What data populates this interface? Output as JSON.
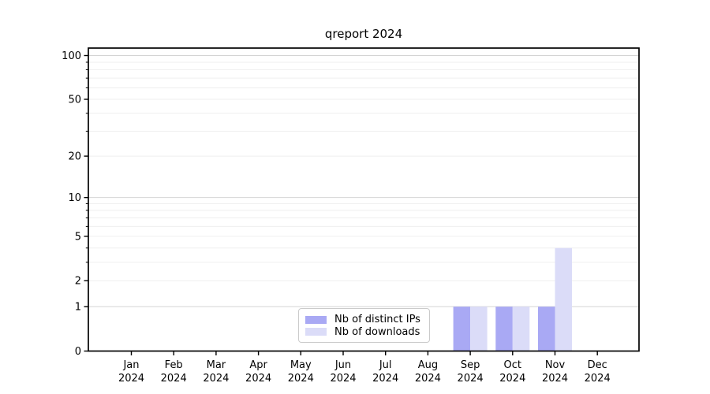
{
  "chart_data": {
    "type": "bar",
    "title": "qreport 2024",
    "xlabel": "",
    "ylabel": "",
    "categories": [
      "Jan 2024",
      "Feb 2024",
      "Mar 2024",
      "Apr 2024",
      "May 2024",
      "Jun 2024",
      "Jul 2024",
      "Aug 2024",
      "Sep 2024",
      "Oct 2024",
      "Nov 2024",
      "Dec 2024"
    ],
    "series": [
      {
        "name": "Nb of distinct IPs",
        "color": "#a9a9f4",
        "values": [
          0,
          0,
          0,
          0,
          0,
          0,
          0,
          0,
          1,
          1,
          1,
          0
        ]
      },
      {
        "name": "Nb of downloads",
        "color": "#dbdcf8",
        "values": [
          0,
          0,
          0,
          0,
          0,
          0,
          0,
          0,
          1,
          1,
          4,
          0
        ]
      }
    ],
    "yscale": "log1p",
    "yticks": [
      0,
      1,
      2,
      5,
      10,
      20,
      50,
      100
    ],
    "ylim": [
      0,
      113
    ],
    "grid": "major-and-minor-horizontal",
    "legend_position": "lower-center-inside",
    "colors": {
      "axis": "#000000",
      "tick_label": "#000000",
      "major_grid": "#d4d4d4",
      "minor_grid": "#efefef",
      "background": "#ffffff"
    }
  }
}
